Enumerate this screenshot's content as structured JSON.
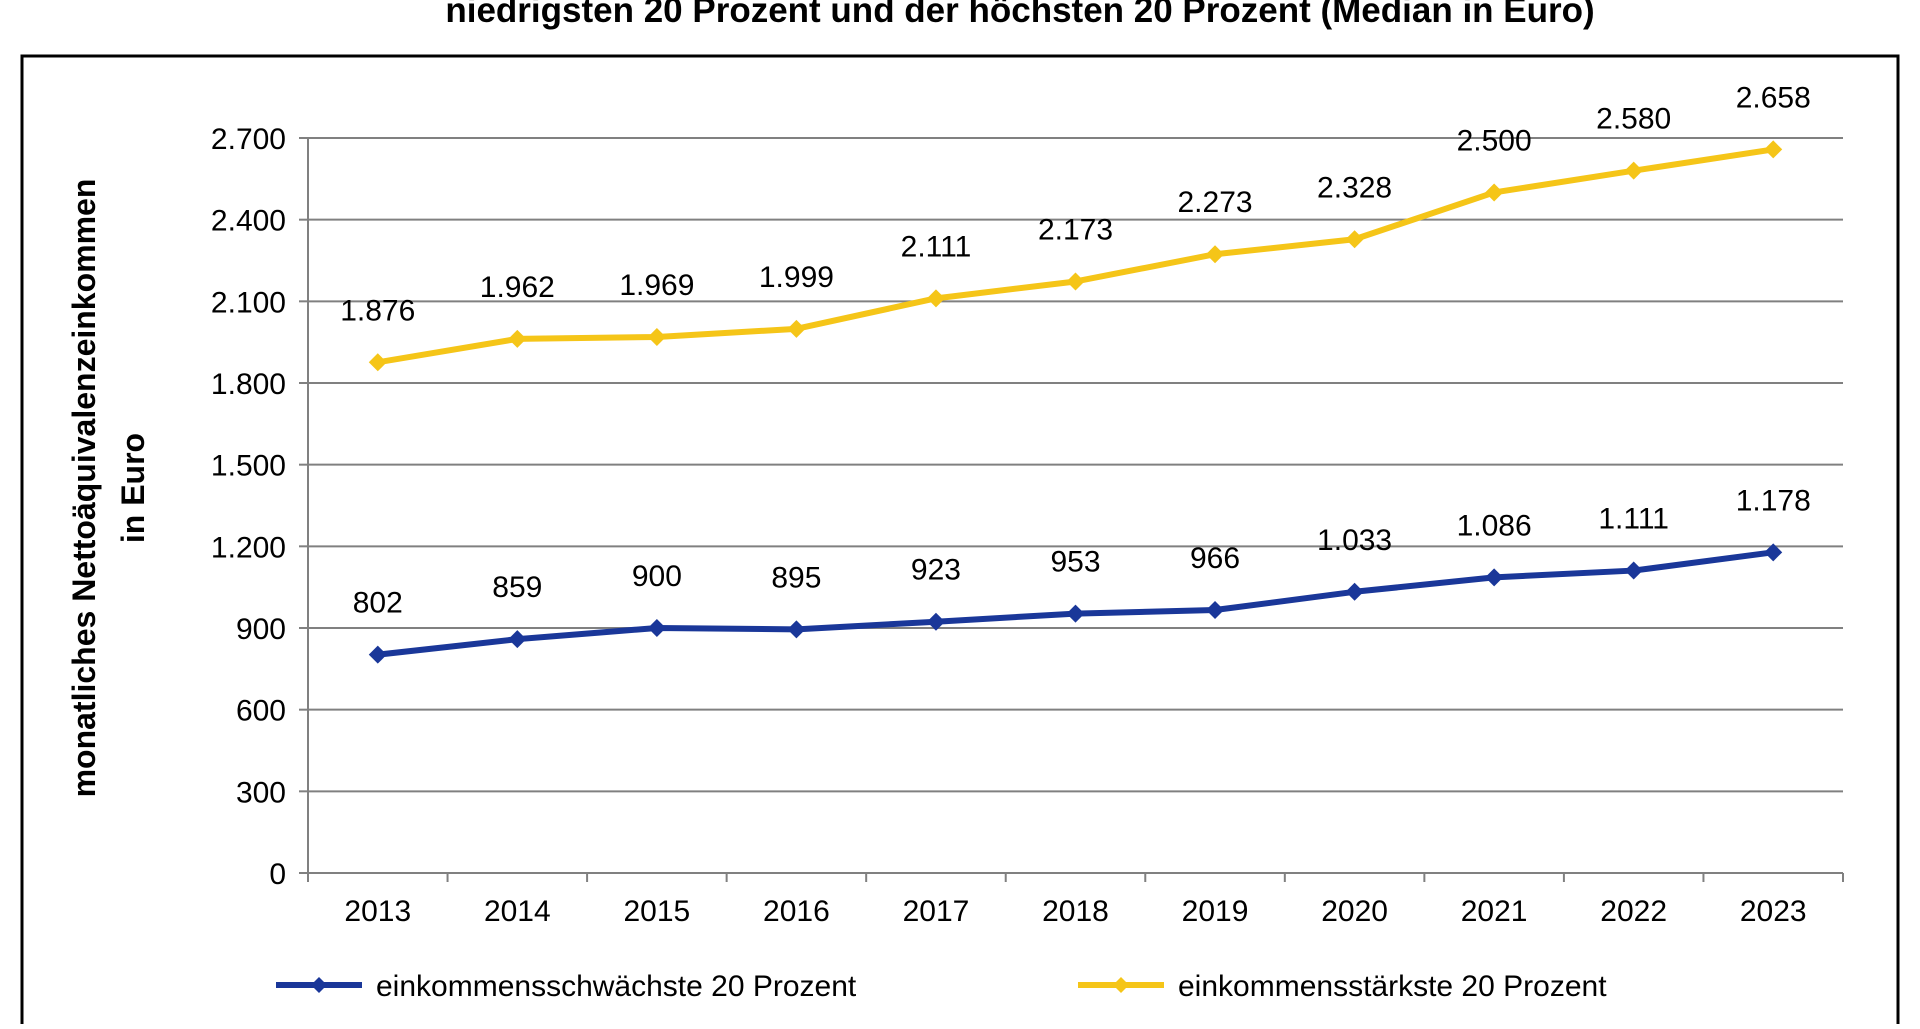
{
  "chart_data": {
    "type": "line",
    "title": "niedrigsten 20 Prozent und der höchsten 20 Prozent (Median in Euro)",
    "xlabel": "",
    "ylabel": [
      "monatliches Nettoäquivalenzeinkommen",
      "in Euro"
    ],
    "ylim": [
      0,
      2700
    ],
    "yticks": [
      0,
      300,
      600,
      900,
      1200,
      1500,
      1800,
      2100,
      2400,
      2700
    ],
    "ytick_labels": [
      "0",
      "300",
      "600",
      "900",
      "1.200",
      "1.500",
      "1.800",
      "2.100",
      "2.400",
      "2.700"
    ],
    "grid": true,
    "legend": "bottom",
    "categories": [
      "2013",
      "2014",
      "2015",
      "2016",
      "2017",
      "2018",
      "2019",
      "2020",
      "2021",
      "2022",
      "2023"
    ],
    "series": [
      {
        "name": "einkommensschwächste 20 Prozent",
        "color": "#1a3799",
        "values": [
          802,
          859,
          900,
          895,
          923,
          953,
          966,
          1033,
          1086,
          1111,
          1178
        ],
        "labels": [
          "802",
          "859",
          "900",
          "895",
          "923",
          "953",
          "966",
          "1.033",
          "1.086",
          "1.111",
          "1.178"
        ]
      },
      {
        "name": "einkommensstärkste 20 Prozent",
        "color": "#f5c518",
        "values": [
          1876,
          1962,
          1969,
          1999,
          2111,
          2173,
          2273,
          2328,
          2500,
          2580,
          2658
        ],
        "labels": [
          "1.876",
          "1.962",
          "1.969",
          "1.999",
          "2.111",
          "2.173",
          "2.273",
          "2.328",
          "2.500",
          "2.580",
          "2.658"
        ]
      }
    ]
  }
}
